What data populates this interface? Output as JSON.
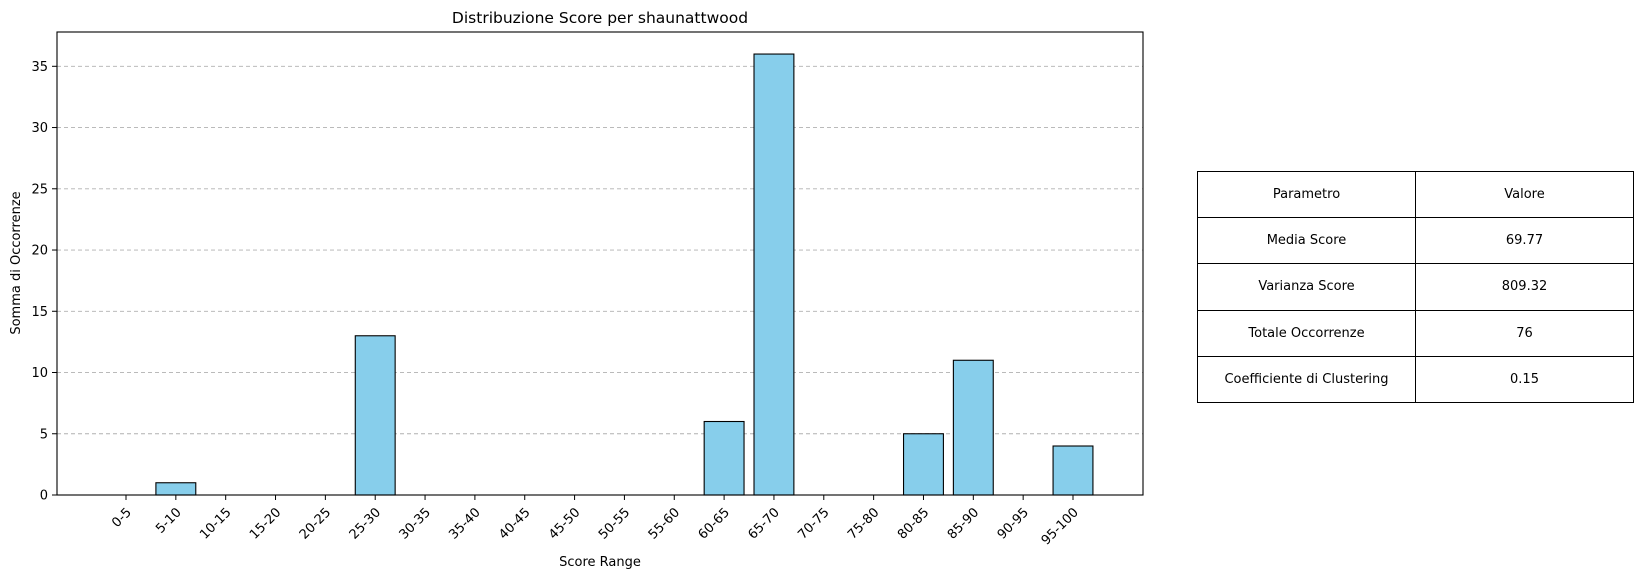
{
  "chart_data": {
    "type": "bar",
    "title": "Distribuzione Score per shaunattwood",
    "xlabel": "Score Range",
    "ylabel": "Somma di Occorrenze",
    "categories": [
      "0-5",
      "5-10",
      "10-15",
      "15-20",
      "20-25",
      "25-30",
      "30-35",
      "35-40",
      "40-45",
      "45-50",
      "50-55",
      "55-60",
      "60-65",
      "65-70",
      "70-75",
      "75-80",
      "80-85",
      "85-90",
      "90-95",
      "95-100"
    ],
    "values": [
      0,
      1,
      0,
      0,
      0,
      13,
      0,
      0,
      0,
      0,
      0,
      0,
      6,
      36,
      0,
      0,
      5,
      11,
      0,
      4
    ],
    "ylim": [
      0,
      37.8
    ],
    "yticks": [
      0,
      5,
      10,
      15,
      20,
      25,
      30,
      35
    ],
    "grid": "y dashed",
    "colors": {
      "bar_fill": "#87CEEB",
      "bar_edge": "#000000",
      "grid": "#b0b0b0"
    }
  },
  "table": {
    "header": [
      "Parametro",
      "Valore"
    ],
    "rows": [
      [
        "Media Score",
        "69.77"
      ],
      [
        "Varianza Score",
        "809.32"
      ],
      [
        "Totale Occorrenze",
        "76"
      ],
      [
        "Coefficiente di Clustering",
        "0.15"
      ]
    ]
  }
}
